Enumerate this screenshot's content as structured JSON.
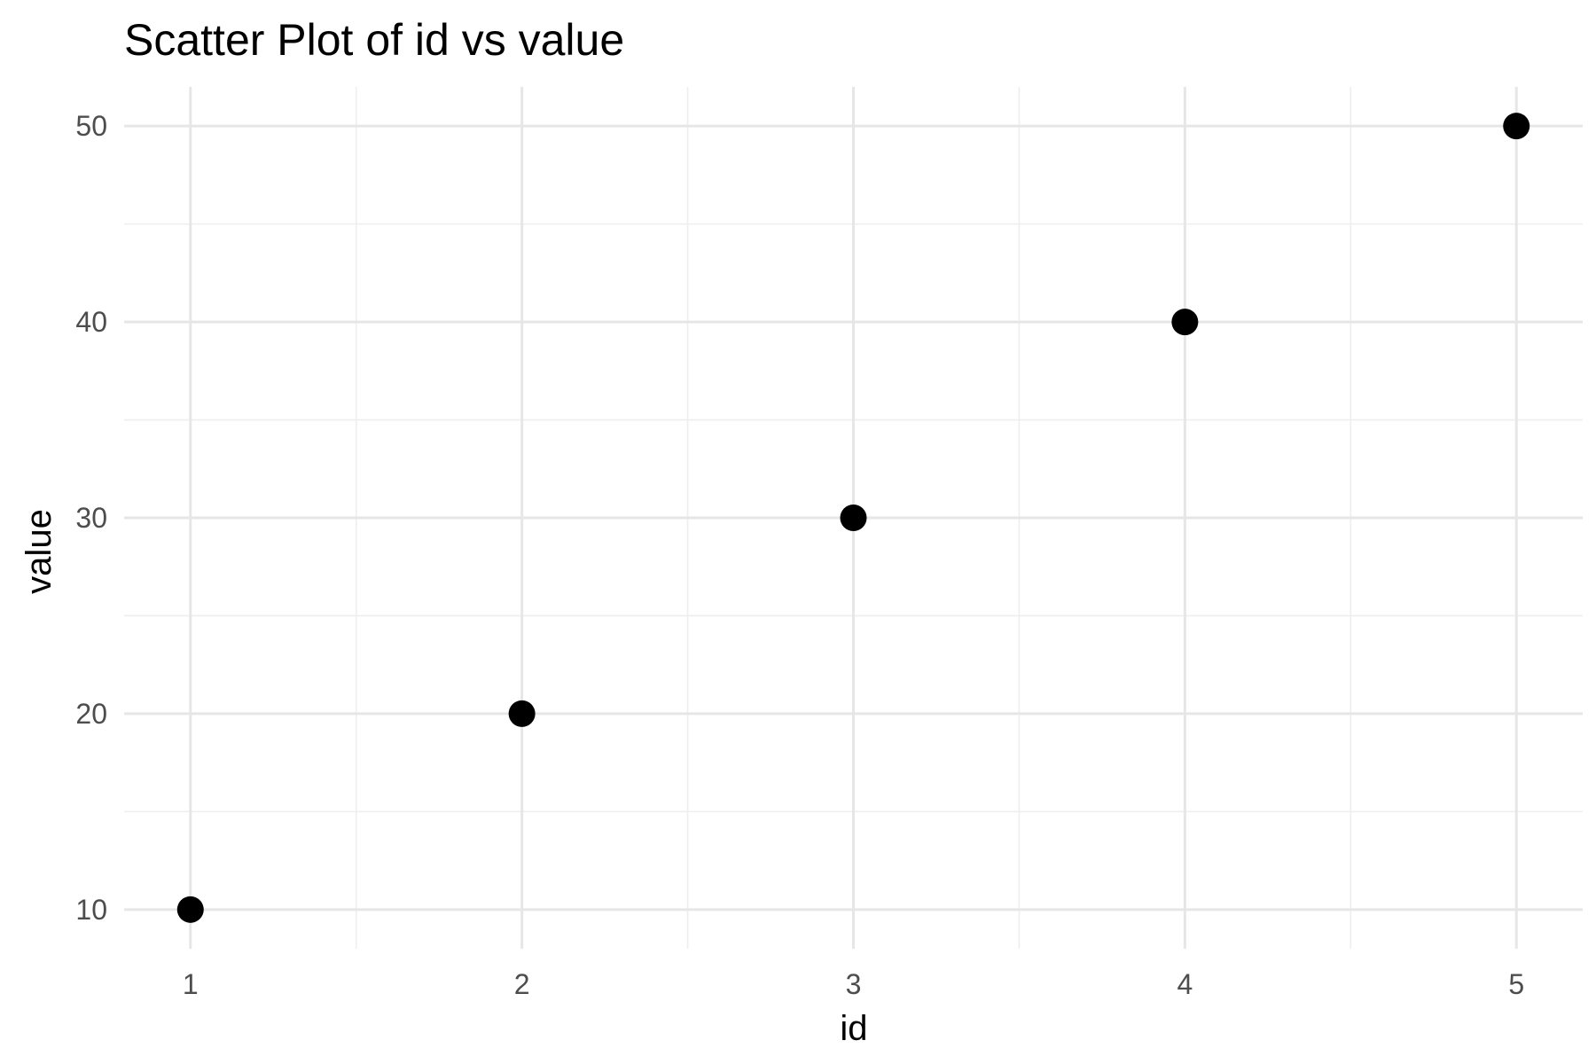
{
  "chart_data": {
    "type": "scatter",
    "title": "Scatter Plot of id vs value",
    "xlabel": "id",
    "ylabel": "value",
    "x": [
      1,
      2,
      3,
      4,
      5
    ],
    "y": [
      10,
      20,
      30,
      40,
      50
    ],
    "xlim": [
      0.8,
      5.2
    ],
    "ylim": [
      8,
      52
    ],
    "x_ticks": [
      "1",
      "2",
      "3",
      "4",
      "5"
    ],
    "y_ticks": [
      "10",
      "20",
      "30",
      "40",
      "50"
    ],
    "grid": true,
    "legend": "none",
    "point_color": "#000000",
    "grid_color": "#e6e6e6",
    "tick_label_color": "#4d4d4d"
  }
}
